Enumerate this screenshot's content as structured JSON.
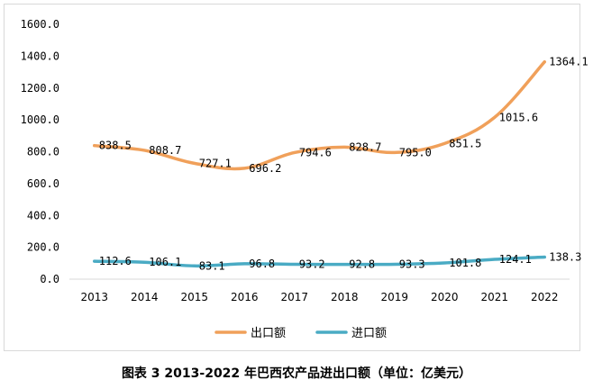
{
  "caption": "图表 3 2013-2022 年巴西农产品进出口额（单位：亿美元）",
  "chart_data": {
    "type": "line",
    "categories": [
      "2013",
      "2014",
      "2015",
      "2016",
      "2017",
      "2018",
      "2019",
      "2020",
      "2021",
      "2022"
    ],
    "series": [
      {
        "name": "出口额",
        "color": "#f0a05a",
        "values": [
          838.5,
          808.7,
          727.1,
          696.2,
          794.6,
          828.7,
          795.0,
          851.5,
          1015.6,
          1364.1
        ],
        "labels": [
          "838.5",
          "808.7",
          "727.1",
          "696.2",
          "794.6",
          "828.7",
          "795.0",
          "851.5",
          "1015.6",
          "1364.1"
        ]
      },
      {
        "name": "进口额",
        "color": "#4aabc4",
        "values": [
          112.6,
          106.1,
          83.1,
          96.8,
          93.2,
          92.8,
          93.3,
          101.8,
          124.1,
          138.3
        ],
        "labels": [
          "112.6",
          "106.1",
          "83.1",
          "96.8",
          "93.2",
          "92.8",
          "93.3",
          "101.8",
          "124.1",
          "138.3"
        ]
      }
    ],
    "ylim": [
      0,
      1600
    ],
    "yticks": [
      "0.0",
      "200.0",
      "400.0",
      "600.0",
      "800.0",
      "1000.0",
      "1200.0",
      "1400.0",
      "1600.0"
    ],
    "legend_position": "bottom",
    "grid": false
  }
}
